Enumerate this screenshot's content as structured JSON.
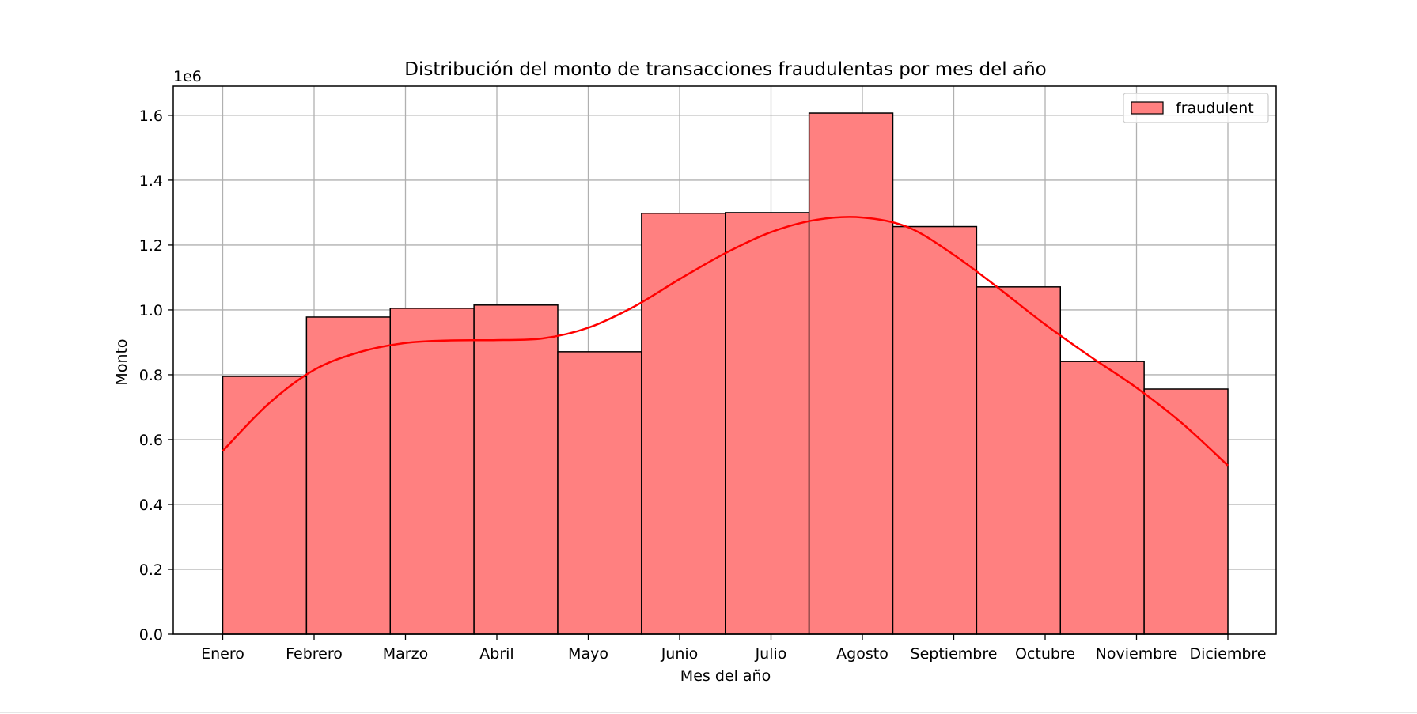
{
  "chart_data": {
    "type": "bar",
    "title": "Distribución del monto de transacciones fraudulentas por mes del año",
    "xlabel": "Mes del año",
    "ylabel": "Monto",
    "y_scale_label": "1e6",
    "y_multiplier": 1000000,
    "categories": [
      "Enero",
      "Febrero",
      "Marzo",
      "Abril",
      "Mayo",
      "Junio",
      "Julio",
      "Agosto",
      "Septiembre",
      "Octubre",
      "Noviembre",
      "Diciembre"
    ],
    "series": [
      {
        "name": "fraudulent",
        "values": [
          0.795,
          0.978,
          1.005,
          1.015,
          0.871,
          1.298,
          1.3,
          1.607,
          1.257,
          1.071,
          0.841,
          0.756
        ],
        "kde": {
          "x": [
            1,
            1.5,
            2,
            2.5,
            3,
            3.5,
            4,
            4.5,
            5,
            5.5,
            6,
            6.5,
            7,
            7.5,
            8,
            8.5,
            9,
            9.5,
            10,
            10.5,
            11,
            11.5,
            12
          ],
          "y": [
            0.565,
            0.71,
            0.815,
            0.87,
            0.898,
            0.906,
            0.907,
            0.912,
            0.945,
            1.01,
            1.095,
            1.175,
            1.24,
            1.278,
            1.285,
            1.255,
            1.17,
            1.065,
            0.955,
            0.855,
            0.76,
            0.65,
            0.52
          ]
        }
      }
    ],
    "ylim": [
      0,
      1.69
    ],
    "yticks": [
      0.0,
      0.2,
      0.4,
      0.6,
      0.8,
      1.0,
      1.2,
      1.4,
      1.6
    ],
    "ytick_labels": [
      "0.0",
      "0.2",
      "0.4",
      "0.6",
      "0.8",
      "1.0",
      "1.2",
      "1.4",
      "1.6"
    ],
    "grid": true,
    "legend_position": "top-right",
    "colors": {
      "bar_fill": "#ff8080",
      "bar_edge": "#000000",
      "kde_line": "#ff0000",
      "grid": "#b0b0b0"
    }
  }
}
